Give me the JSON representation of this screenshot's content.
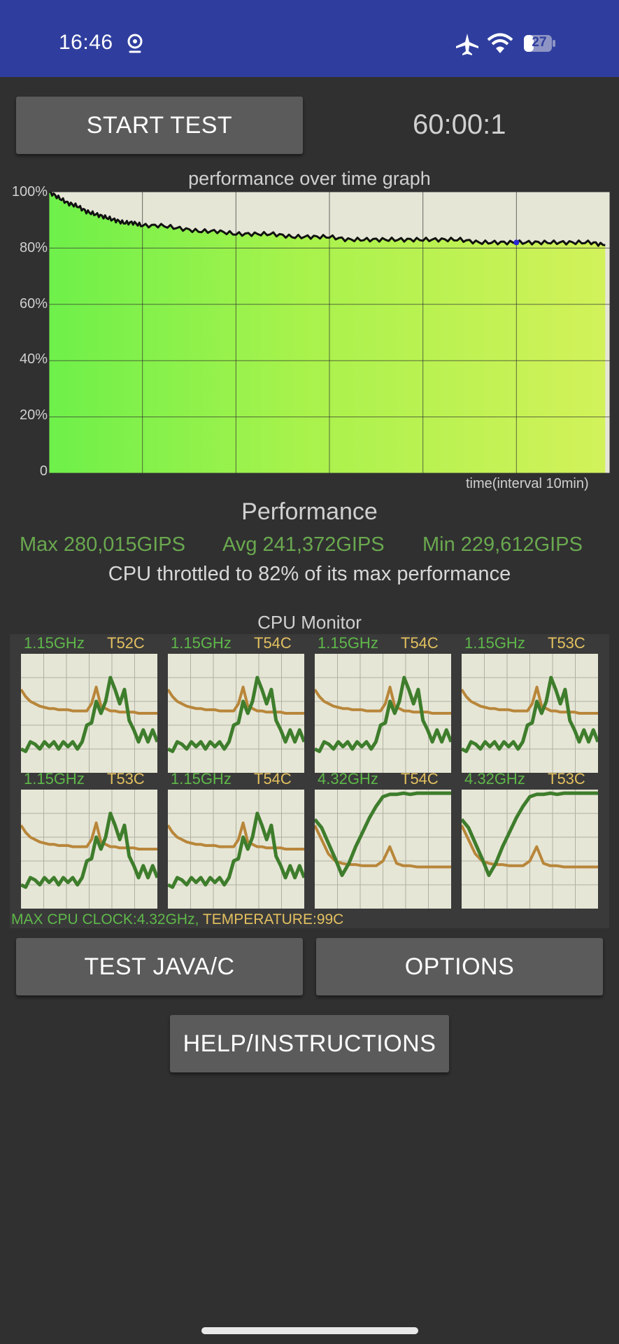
{
  "status_bar": {
    "time": "16:46",
    "battery_level": "27",
    "icons": [
      "location-icon",
      "airplane-icon",
      "wifi-icon",
      "battery-icon"
    ]
  },
  "controls": {
    "start_label": "START TEST",
    "timer": "60:00:1",
    "java_label": "TEST JAVA/C",
    "options_label": "OPTIONS",
    "help_label": "HELP/INSTRUCTIONS"
  },
  "chart_data": {
    "type": "area",
    "title": "performance over time graph",
    "xlabel": "time(interval 10min)",
    "ylabel": "",
    "y_ticks": [
      "100%",
      "80%",
      "60%",
      "40%",
      "20%",
      "0"
    ],
    "ylim": [
      0,
      100
    ],
    "xlim": [
      0,
      60
    ],
    "grid": true,
    "series": [
      {
        "x": [
          0,
          1,
          2,
          3,
          4,
          5,
          6,
          7,
          8,
          9,
          10,
          12,
          14,
          16,
          18,
          20,
          22,
          24,
          26,
          28,
          30,
          32,
          34,
          36,
          38,
          40,
          42,
          44,
          46,
          48,
          50,
          52,
          54,
          56,
          58,
          59.5
        ],
        "y": [
          100,
          98,
          96,
          95,
          93,
          92,
          91,
          90,
          89,
          89,
          88,
          88,
          87,
          86,
          86,
          85,
          85,
          85,
          84,
          84,
          84,
          83,
          83,
          83,
          83,
          83,
          83,
          83,
          82,
          82,
          82,
          82,
          82,
          82,
          82,
          81
        ]
      }
    ]
  },
  "performance": {
    "title": "Performance",
    "max": "Max 280,015GIPS",
    "avg": "Avg 241,372GIPS",
    "min": "Min 229,612GIPS",
    "throttle": "CPU throttled to 82% of its max performance"
  },
  "cpu_monitor": {
    "title": "CPU Monitor",
    "cores": [
      {
        "freq": "1.15GHz",
        "temp": "T52C",
        "profile": "low"
      },
      {
        "freq": "1.15GHz",
        "temp": "T54C",
        "profile": "low"
      },
      {
        "freq": "1.15GHz",
        "temp": "T54C",
        "profile": "low"
      },
      {
        "freq": "1.15GHz",
        "temp": "T53C",
        "profile": "low"
      },
      {
        "freq": "1.15GHz",
        "temp": "T53C",
        "profile": "low"
      },
      {
        "freq": "1.15GHz",
        "temp": "T54C",
        "profile": "low"
      },
      {
        "freq": "4.32GHz",
        "temp": "T54C",
        "profile": "high"
      },
      {
        "freq": "4.32GHz",
        "temp": "T53C",
        "profile": "high"
      }
    ],
    "footer_clock": "MAX CPU CLOCK:4.32GHz,",
    "footer_temp": " TEMPERATURE:99C"
  }
}
